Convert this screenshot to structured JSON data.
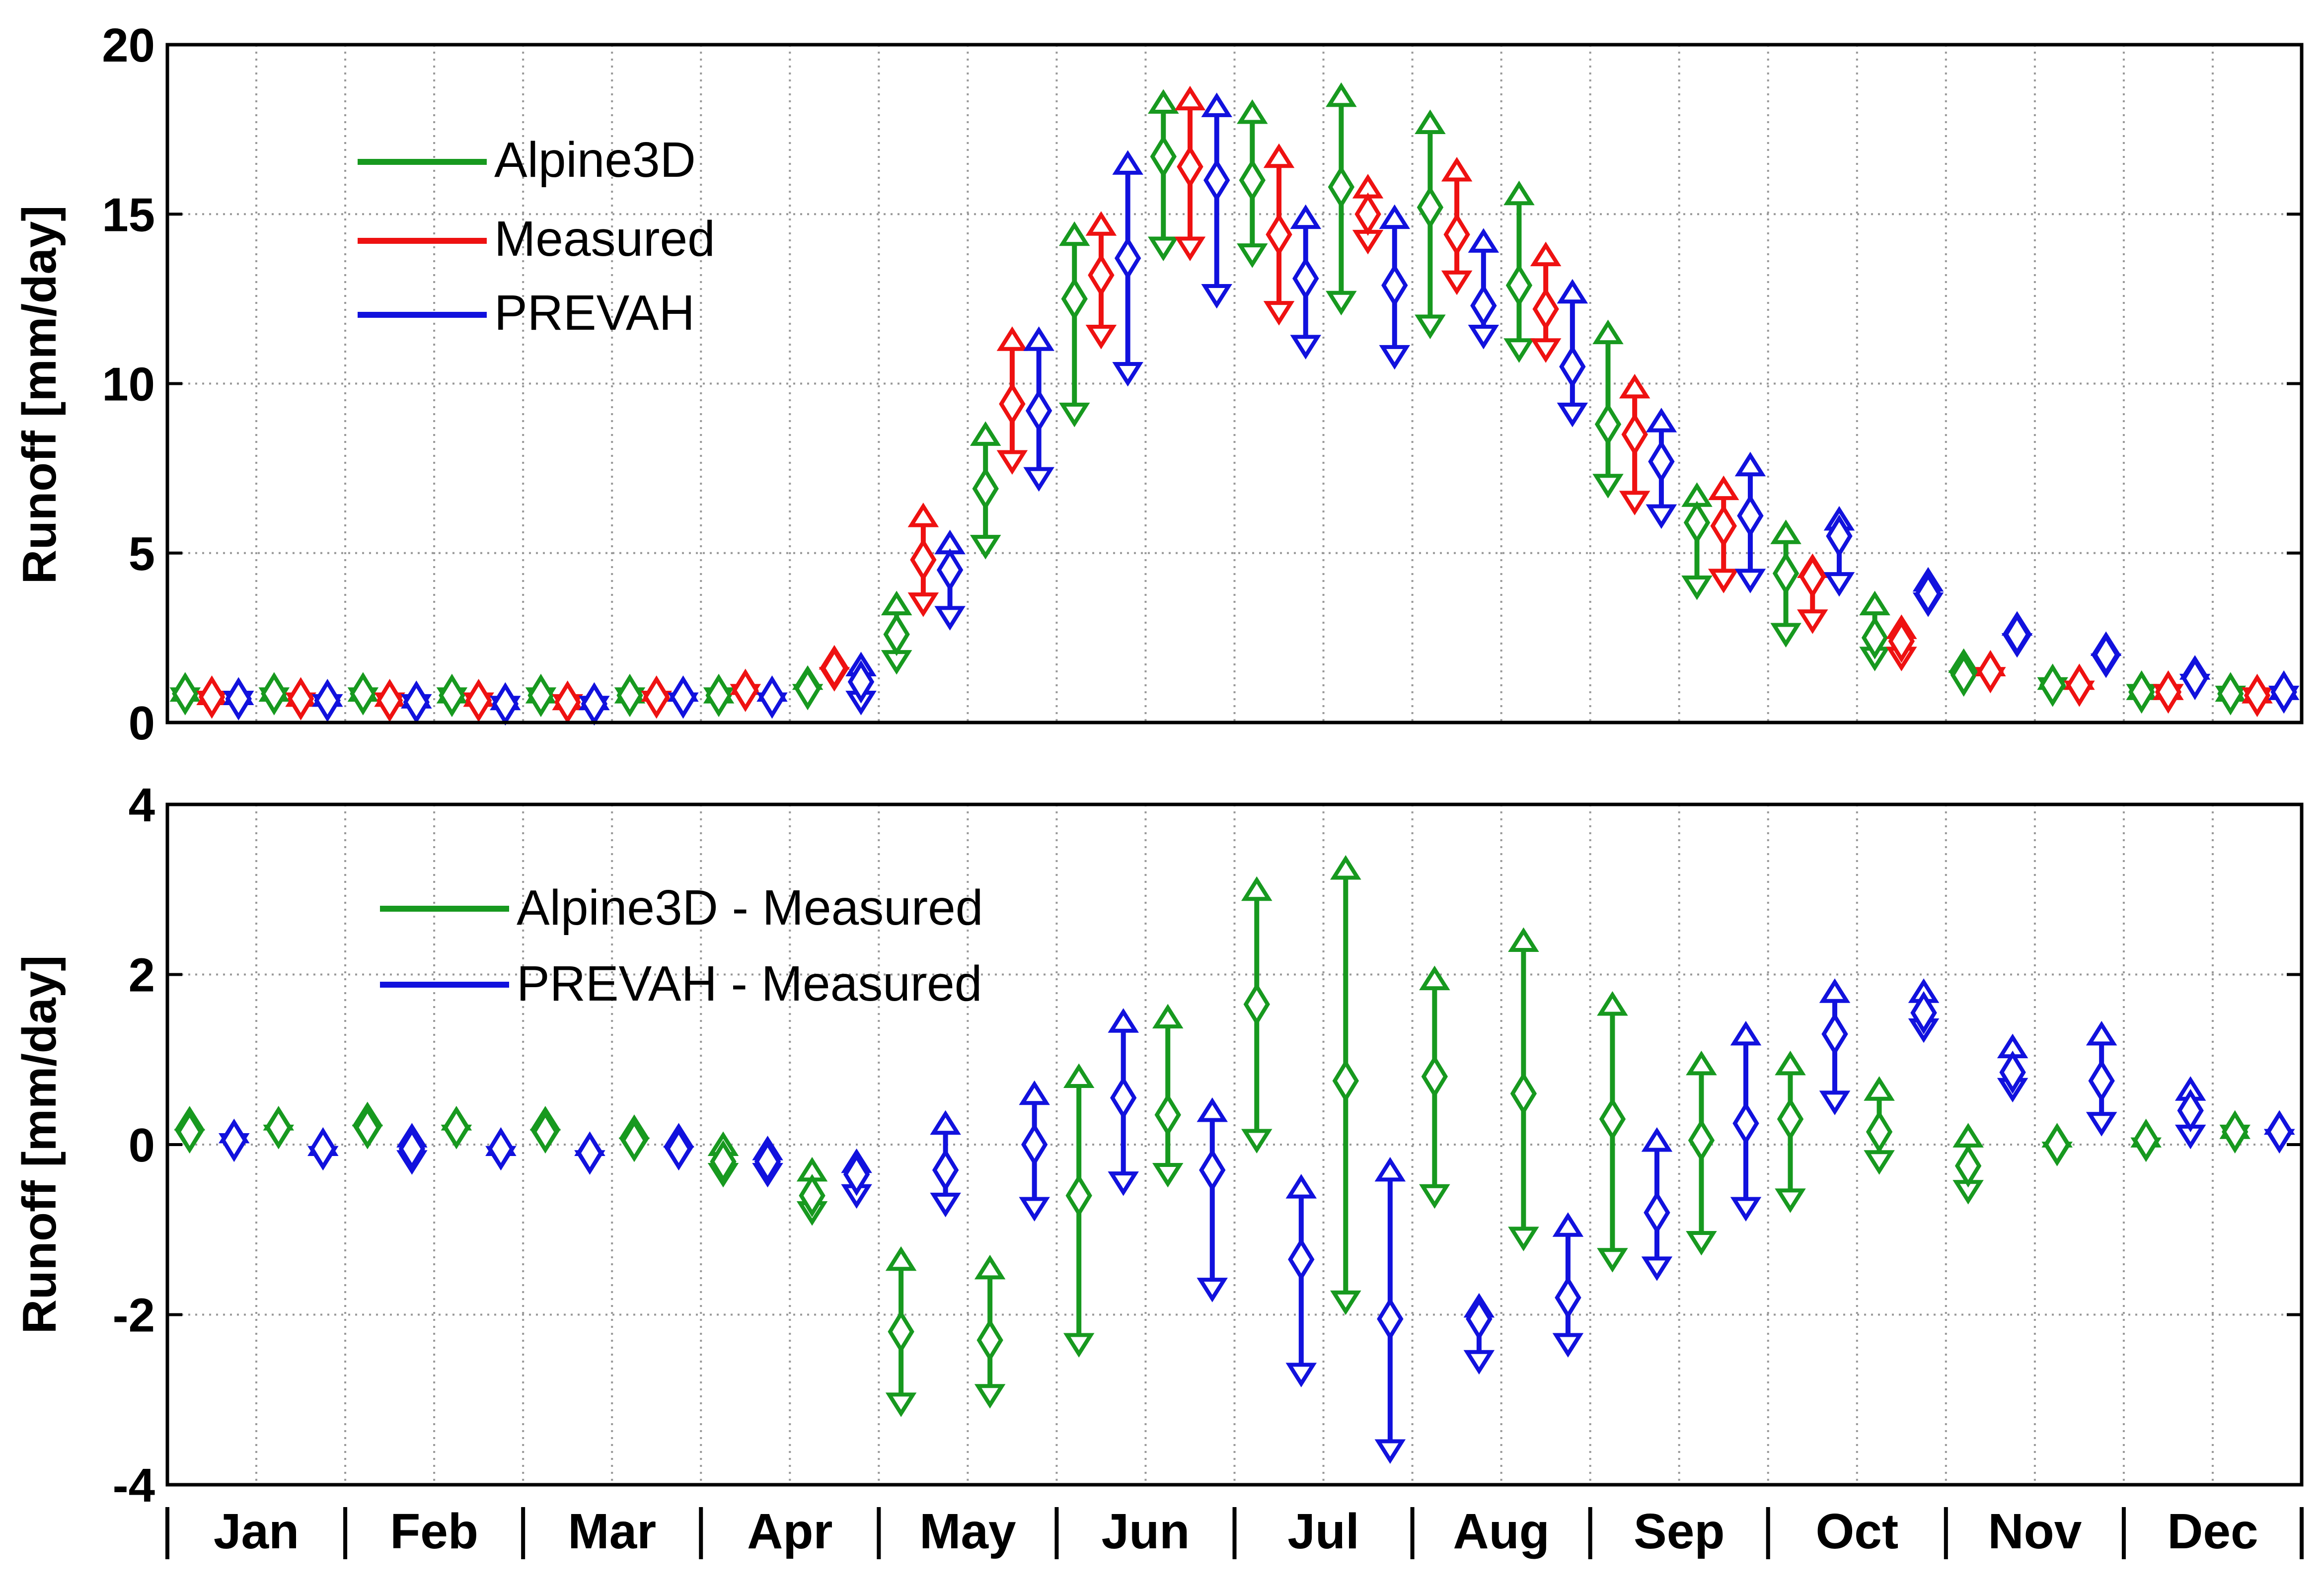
{
  "colors": {
    "Alpine3D": "#17991f",
    "Measured": "#ee1111",
    "PREVAH": "#1111dd",
    "grid": "#999999",
    "axis": "#000000"
  },
  "months": [
    "Jan",
    "Feb",
    "Mar",
    "Apr",
    "May",
    "Jun",
    "Jul",
    "Aug",
    "Sep",
    "Oct",
    "Nov",
    "Dec"
  ],
  "chart_data": [
    {
      "type": "errorbar",
      "ylabel": "Runoff [mm/day]",
      "ylim": [
        0,
        20
      ],
      "yticks": [
        0,
        5,
        10,
        15,
        20
      ],
      "ytick_labels": [
        "0",
        "5",
        "10",
        "15",
        "20"
      ],
      "grid": true,
      "legend_position": "top-left",
      "categories": [
        "Jan",
        "Jan",
        "Feb",
        "Feb",
        "Mar",
        "Mar",
        "Apr",
        "Apr",
        "May",
        "May",
        "Jun",
        "Jun",
        "Jul",
        "Jul",
        "Aug",
        "Aug",
        "Sep",
        "Sep",
        "Oct",
        "Oct",
        "Nov",
        "Nov",
        "Dec",
        "Dec"
      ],
      "series": [
        {
          "name": "Alpine3D",
          "slot_offset": -0.3,
          "median": [
            0.85,
            0.85,
            0.85,
            0.8,
            0.8,
            0.8,
            0.8,
            1.0,
            2.6,
            6.9,
            12.5,
            16.7,
            16.0,
            15.8,
            15.2,
            12.9,
            8.8,
            5.9,
            4.4,
            2.5,
            1.4,
            1.1,
            0.9,
            0.85
          ],
          "high": [
            0.95,
            0.95,
            0.95,
            0.9,
            0.9,
            0.9,
            0.9,
            1.3,
            3.5,
            8.5,
            14.4,
            18.3,
            18.0,
            18.5,
            17.7,
            15.6,
            11.5,
            6.7,
            5.6,
            3.5,
            1.8,
            1.3,
            1.0,
            0.95
          ],
          "low": [
            0.7,
            0.7,
            0.7,
            0.7,
            0.7,
            0.7,
            0.7,
            0.8,
            1.8,
            5.2,
            9.1,
            14.0,
            13.8,
            12.4,
            11.7,
            11.0,
            7.0,
            4.0,
            2.6,
            1.9,
            1.2,
            1.0,
            0.8,
            0.75
          ]
        },
        {
          "name": "Measured",
          "slot_offset": 0.0,
          "median": [
            0.75,
            0.7,
            0.65,
            0.65,
            0.6,
            0.75,
            0.95,
            1.6,
            4.8,
            9.4,
            13.2,
            16.4,
            14.4,
            15.0,
            14.4,
            12.2,
            8.5,
            5.8,
            4.3,
            2.4,
            1.5,
            1.1,
            0.9,
            0.8
          ],
          "high": [
            0.85,
            0.8,
            0.8,
            0.8,
            0.7,
            0.95,
            1.15,
            1.9,
            6.1,
            11.3,
            14.7,
            18.4,
            16.7,
            15.8,
            16.3,
            13.8,
            9.9,
            6.9,
            4.6,
            2.8,
            1.7,
            1.3,
            1.0,
            0.9
          ],
          "low": [
            0.6,
            0.55,
            0.55,
            0.55,
            0.5,
            0.6,
            0.8,
            1.3,
            3.5,
            7.7,
            11.4,
            14.0,
            12.1,
            14.2,
            13.0,
            11.0,
            6.5,
            4.2,
            3.0,
            1.9,
            1.3,
            0.9,
            0.8,
            0.7
          ]
        },
        {
          "name": "PREVAH",
          "slot_offset": 0.3,
          "median": [
            0.7,
            0.65,
            0.6,
            0.55,
            0.55,
            0.75,
            0.75,
            1.2,
            4.5,
            9.2,
            13.7,
            16.0,
            13.1,
            12.9,
            12.3,
            10.5,
            7.7,
            6.1,
            5.5,
            3.8,
            2.6,
            2.0,
            1.3,
            0.9
          ],
          "high": [
            0.85,
            0.8,
            0.75,
            0.7,
            0.7,
            0.95,
            0.95,
            1.7,
            5.3,
            11.3,
            16.5,
            18.2,
            14.9,
            14.9,
            14.2,
            12.7,
            8.9,
            7.6,
            6.0,
            4.2,
            2.9,
            2.3,
            1.6,
            1.0
          ],
          "low": [
            0.6,
            0.5,
            0.5,
            0.45,
            0.45,
            0.55,
            0.55,
            0.6,
            3.1,
            7.2,
            10.3,
            12.6,
            11.1,
            10.8,
            11.4,
            9.1,
            6.1,
            4.2,
            4.1,
            3.5,
            2.3,
            1.7,
            1.1,
            0.75
          ]
        }
      ]
    },
    {
      "type": "errorbar",
      "ylabel": "Runoff [mm/day]",
      "ylim": [
        -4,
        4
      ],
      "yticks": [
        -4,
        -2,
        0,
        2,
        4
      ],
      "ytick_labels": [
        "-4",
        "-2",
        "0",
        "2",
        "4"
      ],
      "grid": true,
      "legend_position": "top-left",
      "xlabel_ticks": [
        "Jan",
        "Feb",
        "Mar",
        "Apr",
        "May",
        "Jun",
        "Jul",
        "Aug",
        "Sep",
        "Oct",
        "Nov",
        "Dec"
      ],
      "categories": [
        "Jan",
        "Jan",
        "Feb",
        "Feb",
        "Mar",
        "Mar",
        "Apr",
        "Apr",
        "May",
        "May",
        "Jun",
        "Jun",
        "Jul",
        "Jul",
        "Aug",
        "Aug",
        "Sep",
        "Sep",
        "Oct",
        "Oct",
        "Nov",
        "Nov",
        "Dec",
        "Dec"
      ],
      "series": [
        {
          "name": "Alpine3D - Measured",
          "slot_offset": -0.25,
          "median": [
            0.15,
            0.2,
            0.2,
            0.2,
            0.15,
            0.05,
            -0.2,
            -0.6,
            -2.2,
            -2.3,
            -0.6,
            0.35,
            1.65,
            0.75,
            0.8,
            0.6,
            0.3,
            0.05,
            0.3,
            0.15,
            -0.25,
            0.0,
            0.05,
            0.15
          ],
          "high": [
            0.3,
            0.3,
            0.35,
            0.3,
            0.3,
            0.2,
            0.0,
            -0.3,
            -1.35,
            -1.45,
            0.8,
            1.5,
            3.0,
            3.25,
            1.95,
            2.4,
            1.65,
            0.95,
            0.95,
            0.65,
            0.1,
            0.1,
            0.1,
            0.2
          ],
          "low": [
            0.05,
            0.1,
            0.1,
            0.1,
            0.05,
            -0.05,
            -0.35,
            -0.8,
            -3.05,
            -2.95,
            -2.35,
            -0.35,
            0.05,
            -1.85,
            -0.6,
            -1.1,
            -1.35,
            -1.15,
            -0.65,
            -0.2,
            -0.55,
            -0.1,
            -0.05,
            0.1
          ]
        },
        {
          "name": "PREVAH - Measured",
          "slot_offset": 0.25,
          "median": [
            0.05,
            -0.05,
            -0.05,
            -0.05,
            -0.1,
            -0.05,
            -0.2,
            -0.35,
            -0.3,
            0.0,
            0.55,
            -0.3,
            -1.35,
            -2.05,
            -2.05,
            -1.8,
            -0.8,
            0.25,
            1.3,
            1.55,
            0.85,
            0.75,
            0.4,
            0.15
          ],
          "high": [
            0.15,
            0.0,
            0.1,
            0.0,
            0.0,
            0.1,
            -0.05,
            -0.2,
            0.25,
            0.6,
            1.45,
            0.4,
            -0.5,
            -0.3,
            -1.9,
            -0.95,
            0.05,
            1.3,
            1.8,
            1.8,
            1.15,
            1.3,
            0.65,
            0.25
          ],
          "low": [
            0.0,
            -0.15,
            -0.2,
            -0.15,
            -0.2,
            -0.15,
            -0.35,
            -0.6,
            -0.7,
            -0.75,
            -0.45,
            -1.7,
            -2.7,
            -3.6,
            -2.55,
            -2.35,
            -1.45,
            -0.75,
            0.5,
            1.35,
            0.65,
            0.25,
            0.1,
            0.05
          ]
        }
      ]
    }
  ]
}
